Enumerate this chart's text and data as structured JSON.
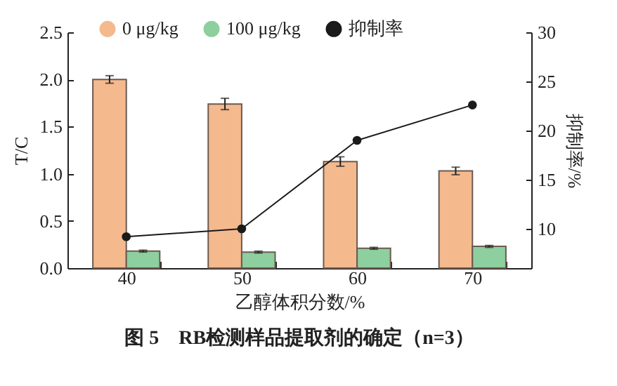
{
  "chart_data": {
    "type": "bar",
    "title": "图 5　RB检测样品提取剂的确定（n=3）",
    "xlabel": "乙醇体积分数/%",
    "ylabel": "T/C",
    "y2label": "抑制率/%",
    "categories": [
      "40",
      "50",
      "60",
      "70"
    ],
    "series": [
      {
        "name": "0 μg/kg",
        "color": "#f5b98e",
        "values": [
          2.0,
          1.74,
          1.13,
          1.03
        ],
        "errors": [
          0.04,
          0.06,
          0.05,
          0.04
        ]
      },
      {
        "name": "100 μg/kg",
        "color": "#8dcf9e",
        "values": [
          0.18,
          0.17,
          0.21,
          0.23
        ],
        "errors": [
          0.01,
          0.01,
          0.01,
          0.01
        ]
      },
      {
        "name": "抑制率",
        "type": "line",
        "axis": "y2",
        "color": "#1a1a1a",
        "marker": "circle",
        "values": [
          9.2,
          10.0,
          19.0,
          22.6
        ]
      }
    ],
    "ylim": [
      0,
      2.5
    ],
    "yticks": [
      {
        "value": 0,
        "label": "0.0"
      },
      0.5,
      {
        "value": 1,
        "label": "1.0"
      },
      1.5,
      {
        "value": 2,
        "label": "2.0"
      },
      2.5
    ],
    "y2lim": [
      6,
      30
    ],
    "y2ticks": [
      10,
      15,
      20,
      25,
      30
    ],
    "legend": "top"
  }
}
